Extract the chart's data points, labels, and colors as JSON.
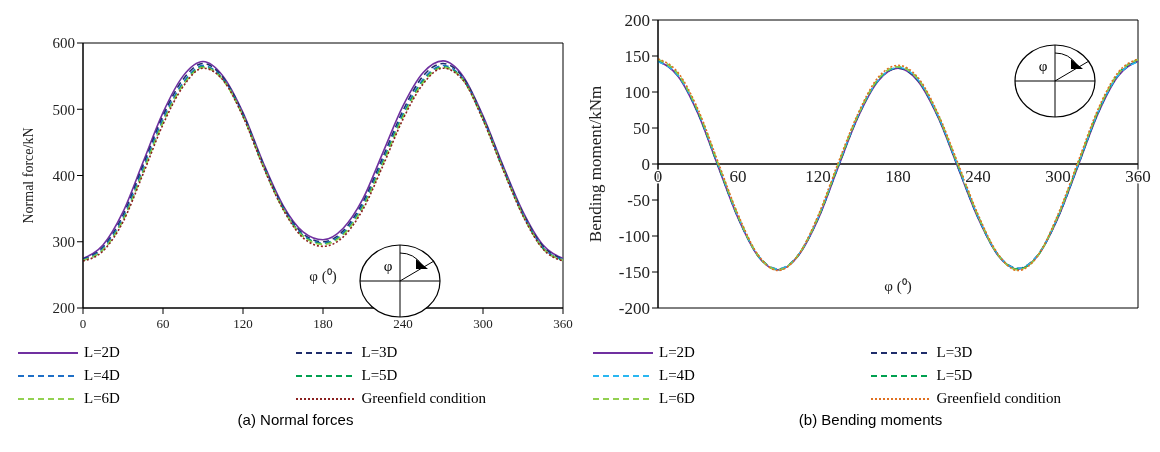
{
  "chart_data": [
    {
      "type": "line",
      "title": "(a) Normal forces",
      "xlabel": "φ (⁰)",
      "ylabel": "Normal force/kN",
      "annotations": [
        "φ"
      ],
      "x": [
        0,
        15,
        30,
        45,
        60,
        75,
        90,
        105,
        120,
        135,
        150,
        165,
        180,
        195,
        210,
        225,
        240,
        255,
        270,
        285,
        300,
        315,
        330,
        345,
        360
      ],
      "xlim": [
        0,
        360
      ],
      "xticks": [
        0,
        60,
        120,
        180,
        240,
        300,
        360
      ],
      "ylim": [
        200,
        600
      ],
      "yticks": [
        200,
        300,
        400,
        500,
        600
      ],
      "legend": "bottom",
      "series": [
        {
          "name": "L=2D",
          "color": "#7030a0",
          "line_style": "solid",
          "values": [
            275,
            295,
            345,
            420,
            495,
            550,
            572,
            550,
            495,
            420,
            355,
            315,
            303,
            320,
            365,
            435,
            505,
            555,
            573,
            550,
            490,
            415,
            345,
            295,
            275
          ]
        },
        {
          "name": "L=3D",
          "color": "#1f2d6b",
          "line_style": "dashed",
          "values": [
            274,
            292,
            340,
            415,
            490,
            545,
            569,
            548,
            493,
            418,
            353,
            312,
            300,
            316,
            360,
            428,
            498,
            550,
            569,
            548,
            488,
            413,
            343,
            293,
            274
          ]
        },
        {
          "name": "L=4D",
          "color": "#1f6fc6",
          "line_style": "dashed",
          "values": [
            273,
            290,
            336,
            410,
            485,
            540,
            566,
            546,
            491,
            416,
            351,
            310,
            298,
            313,
            356,
            423,
            493,
            545,
            566,
            546,
            486,
            411,
            341,
            291,
            273
          ]
        },
        {
          "name": "L=5D",
          "color": "#00a050",
          "line_style": "dashed",
          "values": [
            272,
            288,
            333,
            406,
            481,
            537,
            564,
            545,
            490,
            415,
            350,
            309,
            297,
            311,
            353,
            420,
            490,
            542,
            564,
            545,
            485,
            410,
            340,
            290,
            272
          ]
        },
        {
          "name": "L=6D",
          "color": "#92d050",
          "line_style": "dashed",
          "values": [
            272,
            288,
            332,
            405,
            480,
            536,
            563,
            544,
            490,
            415,
            350,
            308,
            296,
            310,
            352,
            418,
            488,
            540,
            563,
            544,
            485,
            410,
            340,
            290,
            272
          ]
        },
        {
          "name": "Greenfield condition",
          "color": "#8b2020",
          "line_style": "dotted",
          "values": [
            271,
            286,
            330,
            402,
            477,
            534,
            562,
            544,
            489,
            414,
            349,
            306,
            293,
            307,
            349,
            415,
            485,
            538,
            562,
            544,
            484,
            409,
            339,
            289,
            271
          ]
        }
      ]
    },
    {
      "type": "line",
      "title": "(b) Bending moments",
      "xlabel": "φ (⁰)",
      "ylabel": "Bending moment/kNm",
      "annotations": [
        "φ"
      ],
      "x": [
        0,
        15,
        30,
        45,
        60,
        75,
        90,
        105,
        120,
        135,
        150,
        165,
        180,
        195,
        210,
        225,
        240,
        255,
        270,
        285,
        300,
        315,
        330,
        345,
        360
      ],
      "xlim": [
        0,
        360
      ],
      "xticks": [
        0,
        60,
        120,
        180,
        240,
        300,
        360
      ],
      "ylim": [
        -200,
        200
      ],
      "yticks": [
        -200,
        -150,
        -100,
        -50,
        0,
        50,
        100,
        150,
        200
      ],
      "legend": "bottom",
      "series": [
        {
          "name": "L=2D",
          "color": "#7030a0",
          "line_style": "solid",
          "values": [
            143,
            122,
            70,
            -3,
            -75,
            -128,
            -147,
            -128,
            -77,
            -5,
            65,
            115,
            133,
            115,
            65,
            -5,
            -75,
            -127,
            -146,
            -127,
            -75,
            -3,
            70,
            122,
            143
          ]
        },
        {
          "name": "L=3D",
          "color": "#1f2d6b",
          "line_style": "dashed",
          "values": [
            143,
            123,
            71,
            -2,
            -74,
            -127,
            -146,
            -127,
            -76,
            -4,
            66,
            116,
            133,
            116,
            66,
            -4,
            -74,
            -126,
            -145,
            -126,
            -74,
            -2,
            71,
            123,
            143
          ]
        },
        {
          "name": "L=4D",
          "color": "#29b6f0",
          "line_style": "dashed",
          "values": [
            142,
            123,
            72,
            -1,
            -73,
            -127,
            -146,
            -127,
            -75,
            -3,
            67,
            116,
            134,
            117,
            67,
            -3,
            -73,
            -126,
            -145,
            -126,
            -73,
            -1,
            72,
            123,
            142
          ]
        },
        {
          "name": "L=5D",
          "color": "#00a050",
          "line_style": "dashed",
          "values": [
            145,
            125,
            73,
            0,
            -72,
            -127,
            -147,
            -127,
            -74,
            -2,
            68,
            117,
            135,
            118,
            68,
            -2,
            -72,
            -126,
            -146,
            -127,
            -72,
            0,
            73,
            125,
            145
          ]
        },
        {
          "name": "L=6D",
          "color": "#92d050",
          "line_style": "dashed",
          "values": [
            145,
            125,
            74,
            1,
            -72,
            -127,
            -147,
            -127,
            -74,
            -1,
            68,
            118,
            135,
            118,
            68,
            -1,
            -72,
            -126,
            -147,
            -127,
            -72,
            1,
            74,
            125,
            145
          ]
        },
        {
          "name": "Greenfield condition",
          "color": "#e07020",
          "line_style": "dotted",
          "values": [
            146,
            127,
            76,
            3,
            -70,
            -126,
            -148,
            -127,
            -72,
            1,
            70,
            120,
            137,
            120,
            70,
            1,
            -70,
            -125,
            -148,
            -127,
            -70,
            3,
            76,
            127,
            146
          ]
        }
      ]
    }
  ]
}
